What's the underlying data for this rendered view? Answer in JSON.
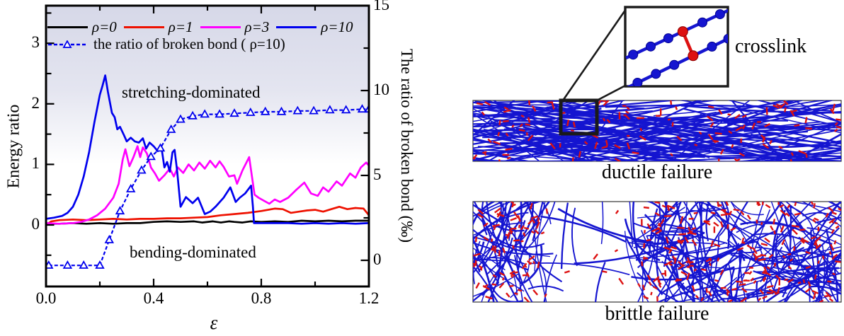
{
  "figure": {
    "right_panel": {
      "crosslink_label": "crosslink",
      "ductile_label": "ductile failure",
      "brittle_label": "brittle failure",
      "fiber_color": "#1515d0",
      "crosslink_color": "#dd1111"
    }
  },
  "chart_data": {
    "type": "line",
    "title": "",
    "xlabel": "ε",
    "ylabel_left": "Energy ratio",
    "ylabel_right": "The ratio of broken bond (‰)",
    "xlim": [
      0,
      1.2
    ],
    "ylim_left": [
      -1.0,
      3.6
    ],
    "ylim_right": [
      -1.55,
      15
    ],
    "xticks": [
      "0.0",
      "0.4",
      "0.8",
      "1.2"
    ],
    "yticks_left": [
      "0",
      "1",
      "2",
      "3"
    ],
    "yticks_right": [
      "0",
      "5",
      "10",
      "15"
    ],
    "grid": false,
    "legend_position": "top-inside",
    "shade_top_color": "#d6d8e8",
    "regions": [
      {
        "label": "stretching-dominated",
        "range": "Energy ratio > 1",
        "fill": "lavender gradient"
      },
      {
        "label": "bending-dominated",
        "range": "Energy ratio < 1",
        "fill": "white"
      }
    ],
    "series": [
      {
        "name": "ρ=0",
        "axis": "left",
        "color": "#000000",
        "style": "solid",
        "points": [
          [
            0,
            0.02
          ],
          [
            0.05,
            0.02
          ],
          [
            0.1,
            0.03
          ],
          [
            0.15,
            0.02
          ],
          [
            0.2,
            0.03
          ],
          [
            0.25,
            0.02
          ],
          [
            0.3,
            0.03
          ],
          [
            0.35,
            0.03
          ],
          [
            0.4,
            0.05
          ],
          [
            0.45,
            0.06
          ],
          [
            0.5,
            0.05
          ],
          [
            0.55,
            0.06
          ],
          [
            0.58,
            0.04
          ],
          [
            0.62,
            0.06
          ],
          [
            0.65,
            0.04
          ],
          [
            0.68,
            0.06
          ],
          [
            0.7,
            0.05
          ],
          [
            0.73,
            0.04
          ],
          [
            0.76,
            0.06
          ],
          [
            0.8,
            0.05
          ],
          [
            0.85,
            0.06
          ],
          [
            0.9,
            0.05
          ],
          [
            0.95,
            0.07
          ],
          [
            1.0,
            0.06
          ],
          [
            1.05,
            0.07
          ],
          [
            1.1,
            0.06
          ],
          [
            1.15,
            0.07
          ],
          [
            1.2,
            0.07
          ]
        ]
      },
      {
        "name": "ρ=1",
        "axis": "left",
        "color": "#ee1100",
        "style": "solid",
        "points": [
          [
            0,
            0.0
          ],
          [
            0.02,
            0.06
          ],
          [
            0.05,
            0.08
          ],
          [
            0.1,
            0.09
          ],
          [
            0.15,
            0.08
          ],
          [
            0.2,
            0.09
          ],
          [
            0.25,
            0.1
          ],
          [
            0.3,
            0.09
          ],
          [
            0.35,
            0.1
          ],
          [
            0.4,
            0.1
          ],
          [
            0.45,
            0.11
          ],
          [
            0.5,
            0.11
          ],
          [
            0.55,
            0.12
          ],
          [
            0.6,
            0.13
          ],
          [
            0.65,
            0.16
          ],
          [
            0.7,
            0.18
          ],
          [
            0.75,
            0.2
          ],
          [
            0.8,
            0.23
          ],
          [
            0.85,
            0.27
          ],
          [
            0.88,
            0.26
          ],
          [
            0.91,
            0.2
          ],
          [
            0.94,
            0.22
          ],
          [
            0.97,
            0.24
          ],
          [
            1.0,
            0.25
          ],
          [
            1.03,
            0.22
          ],
          [
            1.06,
            0.26
          ],
          [
            1.09,
            0.3
          ],
          [
            1.12,
            0.26
          ],
          [
            1.15,
            0.28
          ],
          [
            1.18,
            0.27
          ],
          [
            1.2,
            0.16
          ]
        ]
      },
      {
        "name": "ρ=3",
        "axis": "left",
        "color": "#ff00ff",
        "style": "solid",
        "points": [
          [
            0,
            0.03
          ],
          [
            0.05,
            0.02
          ],
          [
            0.1,
            0.03
          ],
          [
            0.13,
            0.05
          ],
          [
            0.16,
            0.09
          ],
          [
            0.19,
            0.16
          ],
          [
            0.22,
            0.27
          ],
          [
            0.25,
            0.45
          ],
          [
            0.27,
            0.68
          ],
          [
            0.285,
            1.08
          ],
          [
            0.295,
            1.25
          ],
          [
            0.31,
            0.97
          ],
          [
            0.325,
            1.12
          ],
          [
            0.34,
            1.3
          ],
          [
            0.35,
            1.12
          ],
          [
            0.36,
            1.28
          ],
          [
            0.375,
            1.18
          ],
          [
            0.39,
            0.95
          ],
          [
            0.405,
            0.85
          ],
          [
            0.42,
            0.73
          ],
          [
            0.44,
            0.82
          ],
          [
            0.46,
            0.93
          ],
          [
            0.475,
            0.8
          ],
          [
            0.49,
            0.95
          ],
          [
            0.51,
            0.86
          ],
          [
            0.53,
            1.0
          ],
          [
            0.55,
            0.9
          ],
          [
            0.57,
            1.03
          ],
          [
            0.59,
            0.93
          ],
          [
            0.61,
            1.06
          ],
          [
            0.63,
            0.95
          ],
          [
            0.645,
            1.05
          ],
          [
            0.66,
            0.96
          ],
          [
            0.68,
            0.8
          ],
          [
            0.7,
            0.82
          ],
          [
            0.71,
            0.68
          ],
          [
            0.73,
            0.9
          ],
          [
            0.755,
            1.12
          ],
          [
            0.775,
            0.5
          ],
          [
            0.79,
            0.45
          ],
          [
            0.81,
            0.4
          ],
          [
            0.83,
            0.35
          ],
          [
            0.85,
            0.42
          ],
          [
            0.87,
            0.38
          ],
          [
            0.9,
            0.45
          ],
          [
            0.93,
            0.58
          ],
          [
            0.96,
            0.7
          ],
          [
            0.985,
            0.52
          ],
          [
            1.01,
            0.48
          ],
          [
            1.03,
            0.62
          ],
          [
            1.05,
            0.55
          ],
          [
            1.08,
            0.72
          ],
          [
            1.1,
            0.65
          ],
          [
            1.13,
            0.85
          ],
          [
            1.15,
            0.78
          ],
          [
            1.17,
            0.95
          ],
          [
            1.19,
            1.03
          ],
          [
            1.2,
            0.98
          ]
        ]
      },
      {
        "name": "ρ=10",
        "axis": "left",
        "color": "#0000ee",
        "style": "solid",
        "points": [
          [
            0,
            0.1
          ],
          [
            0.03,
            0.12
          ],
          [
            0.06,
            0.15
          ],
          [
            0.08,
            0.2
          ],
          [
            0.1,
            0.3
          ],
          [
            0.12,
            0.5
          ],
          [
            0.14,
            0.8
          ],
          [
            0.16,
            1.2
          ],
          [
            0.18,
            1.7
          ],
          [
            0.2,
            2.15
          ],
          [
            0.21,
            2.3
          ],
          [
            0.22,
            2.47
          ],
          [
            0.23,
            2.2
          ],
          [
            0.245,
            1.85
          ],
          [
            0.255,
            1.78
          ],
          [
            0.265,
            1.58
          ],
          [
            0.275,
            1.62
          ],
          [
            0.29,
            1.48
          ],
          [
            0.3,
            1.38
          ],
          [
            0.315,
            1.44
          ],
          [
            0.33,
            1.38
          ],
          [
            0.345,
            1.36
          ],
          [
            0.36,
            1.43
          ],
          [
            0.372,
            1.26
          ],
          [
            0.385,
            1.36
          ],
          [
            0.4,
            1.3
          ],
          [
            0.415,
            1.22
          ],
          [
            0.43,
            1.25
          ],
          [
            0.44,
            0.95
          ],
          [
            0.45,
            1.04
          ],
          [
            0.46,
            0.88
          ],
          [
            0.47,
            1.2
          ],
          [
            0.478,
            1.24
          ],
          [
            0.487,
            0.9
          ],
          [
            0.5,
            0.3
          ],
          [
            0.52,
            0.46
          ],
          [
            0.545,
            0.36
          ],
          [
            0.565,
            0.45
          ],
          [
            0.59,
            0.18
          ],
          [
            0.61,
            0.22
          ],
          [
            0.63,
            0.3
          ],
          [
            0.66,
            0.45
          ],
          [
            0.685,
            0.62
          ],
          [
            0.705,
            0.38
          ],
          [
            0.72,
            0.45
          ],
          [
            0.74,
            0.52
          ],
          [
            0.762,
            0.65
          ],
          [
            0.769,
            0.3
          ],
          [
            0.773,
            0.03
          ],
          [
            0.8,
            0.03
          ],
          [
            0.85,
            0.03
          ],
          [
            0.9,
            0.03
          ],
          [
            0.95,
            0.02
          ],
          [
            1.0,
            0.03
          ],
          [
            1.05,
            0.02
          ],
          [
            1.1,
            0.03
          ],
          [
            1.15,
            0.02
          ],
          [
            1.2,
            0.03
          ]
        ]
      },
      {
        "name": "the ratio of broken bond ( ρ=10)",
        "axis": "right",
        "color": "#0000ee",
        "style": "dashed",
        "marker": "open-triangle",
        "points": [
          [
            0.01,
            -0.3
          ],
          [
            0.08,
            -0.3
          ],
          [
            0.14,
            -0.3
          ],
          [
            0.2,
            -0.3
          ],
          [
            0.235,
            1.2
          ],
          [
            0.275,
            2.9
          ],
          [
            0.315,
            4.2
          ],
          [
            0.355,
            5.3
          ],
          [
            0.39,
            6.1
          ],
          [
            0.425,
            6.6
          ],
          [
            0.465,
            7.7
          ],
          [
            0.5,
            8.3
          ],
          [
            0.545,
            8.5
          ],
          [
            0.59,
            8.6
          ],
          [
            0.645,
            8.6
          ],
          [
            0.7,
            8.65
          ],
          [
            0.76,
            8.7
          ],
          [
            0.815,
            8.75
          ],
          [
            0.875,
            8.75
          ],
          [
            0.935,
            8.8
          ],
          [
            0.995,
            8.8
          ],
          [
            1.055,
            8.85
          ],
          [
            1.115,
            8.85
          ],
          [
            1.175,
            8.9
          ],
          [
            1.2,
            8.9
          ]
        ]
      }
    ]
  }
}
